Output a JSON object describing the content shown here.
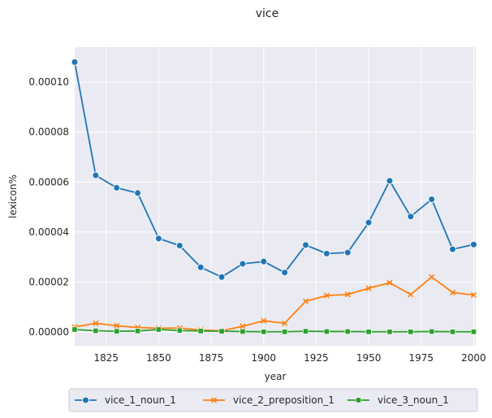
{
  "chart_data": {
    "type": "line",
    "title": "vice",
    "xlabel": "year",
    "ylabel": "lexicon%",
    "xlim": [
      1810,
      2001
    ],
    "ylim": [
      -5.5e-06,
      0.000114
    ],
    "xticks": [
      1825,
      1850,
      1875,
      1900,
      1925,
      1950,
      1975,
      2000
    ],
    "yticks": [
      0.0,
      2e-05,
      4e-05,
      6e-05,
      8e-05,
      0.0001
    ],
    "ytick_labels": [
      "0.00000",
      "0.00002",
      "0.00004",
      "0.00006",
      "0.00008",
      "0.00010"
    ],
    "grid": true,
    "legend_position": "bottom",
    "x": [
      1810,
      1820,
      1830,
      1840,
      1850,
      1860,
      1870,
      1880,
      1890,
      1900,
      1910,
      1920,
      1930,
      1940,
      1950,
      1960,
      1970,
      1980,
      1990,
      2000
    ],
    "series": [
      {
        "name": "vice_1_noun_1",
        "color": "#1f77b4",
        "marker": "circle",
        "values": [
          0.000108,
          6.27e-05,
          5.77e-05,
          5.56e-05,
          3.74e-05,
          3.46e-05,
          2.59e-05,
          2.2e-05,
          2.73e-05,
          2.82e-05,
          2.38e-05,
          3.48e-05,
          3.14e-05,
          3.18e-05,
          4.38e-05,
          6.05e-05,
          4.62e-05,
          5.31e-05,
          3.31e-05,
          3.5e-05
        ]
      },
      {
        "name": "vice_2_preposition_1",
        "color": "#ff7f0e",
        "marker": "x",
        "values": [
          2e-06,
          3.5e-06,
          2.5e-06,
          1.8e-06,
          1.5e-06,
          1.6e-06,
          8e-07,
          5e-07,
          2.3e-06,
          4.5e-06,
          3.5e-06,
          1.23e-05,
          1.46e-05,
          1.5e-05,
          1.75e-05,
          1.97e-05,
          1.5e-05,
          2.2e-05,
          1.58e-05,
          1.48e-05
        ]
      },
      {
        "name": "vice_3_noun_1",
        "color": "#2ca02c",
        "marker": "square",
        "values": [
          1e-06,
          5e-07,
          3e-07,
          4e-07,
          1e-06,
          6e-07,
          4e-07,
          3e-07,
          2e-07,
          1e-07,
          1e-07,
          3e-07,
          2e-07,
          2e-07,
          1e-07,
          1e-07,
          1e-07,
          2e-07,
          1e-07,
          1e-07
        ]
      }
    ]
  }
}
